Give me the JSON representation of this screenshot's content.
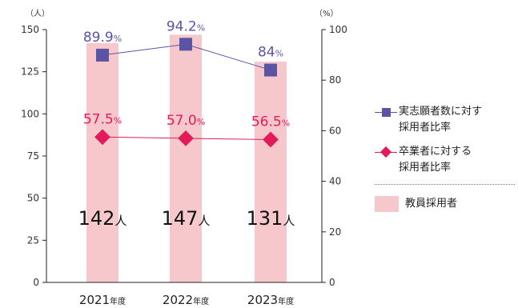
{
  "colors": {
    "bar": "#f7c8cb",
    "applicant": "#5b54a4",
    "graduate": "#e31b5b",
    "axis": "#222222"
  },
  "chart_data": {
    "type": "bar",
    "categories": [
      "2021",
      "2022",
      "2023"
    ],
    "category_suffix": "年度",
    "left_axis": {
      "unit_label": "（人）",
      "ylim": [
        0,
        150
      ],
      "ticks": [
        "0",
        "25",
        "50",
        "75",
        "100",
        "125",
        "150"
      ]
    },
    "right_axis": {
      "unit_label": "（%）",
      "ylim": [
        0,
        100
      ],
      "ticks": [
        "0",
        "20",
        "40",
        "60",
        "80",
        "100"
      ]
    },
    "series": [
      {
        "name": "教員採用者",
        "kind": "bar",
        "axis": "left",
        "values": [
          142,
          147,
          131
        ],
        "labels": [
          "142",
          "147",
          "131"
        ],
        "label_unit": "人"
      },
      {
        "name": "実志願者数に対する採用者比率",
        "kind": "line",
        "axis": "right",
        "marker": "square",
        "values": [
          89.9,
          94.2,
          84
        ],
        "labels": [
          "89.9",
          "94.2",
          "84"
        ],
        "label_unit": "%"
      },
      {
        "name": "卒業者に対する採用者比率",
        "kind": "line",
        "axis": "right",
        "marker": "diamond",
        "values": [
          57.5,
          57.0,
          56.5
        ],
        "labels": [
          "57.5",
          "57.0",
          "56.5"
        ],
        "label_unit": "%"
      }
    ],
    "grid": false,
    "legend_position": "right"
  },
  "legend": {
    "applicant": "実志願者数に対す\n採用者比率",
    "graduate": "卒業者に対する\n採用者比率",
    "bar": "教員採用者"
  }
}
